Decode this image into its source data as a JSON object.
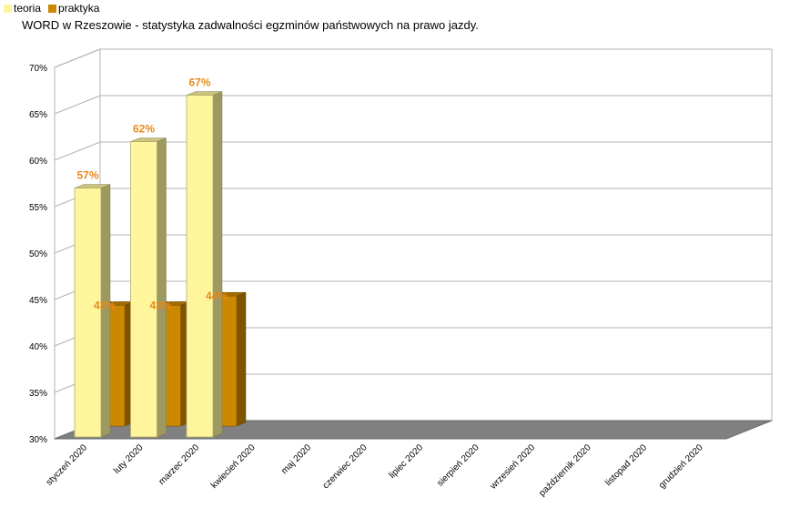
{
  "chart_data": {
    "type": "bar",
    "title": "WORD w Rzeszowie - statystyka zadwalności egzminów państwowych na prawo jazdy.",
    "categories": [
      "styczeń 2020",
      "luty 2020",
      "marzec 2020",
      "kwiecień 2020",
      "maj 2020",
      "czerwiec 2020",
      "lipiec 2020",
      "sierpień 2020",
      "wrzesień 2020",
      "październik 2020",
      "listopad 2020",
      "grudzień 2020"
    ],
    "series": [
      {
        "name": "teoria",
        "values": [
          57,
          62,
          67,
          null,
          null,
          null,
          null,
          null,
          null,
          null,
          null,
          null
        ],
        "labels": [
          "57%",
          "62%",
          "67%"
        ]
      },
      {
        "name": "praktyka",
        "values": [
          43,
          43,
          44,
          null,
          null,
          null,
          null,
          null,
          null,
          null,
          null,
          null
        ],
        "labels": [
          "43%",
          "43%",
          "44%"
        ]
      }
    ],
    "yticks": [
      "30%",
      "35%",
      "40%",
      "45%",
      "50%",
      "55%",
      "60%",
      "65%",
      "70%"
    ],
    "ylim": [
      30,
      70
    ],
    "grid": true,
    "legend": "top-left",
    "colors": {
      "teoria": "#fff59c",
      "praktyka": "#cc8800",
      "floor": "#808080",
      "grid": "#b3b3b3",
      "label": "#e8891a"
    }
  }
}
